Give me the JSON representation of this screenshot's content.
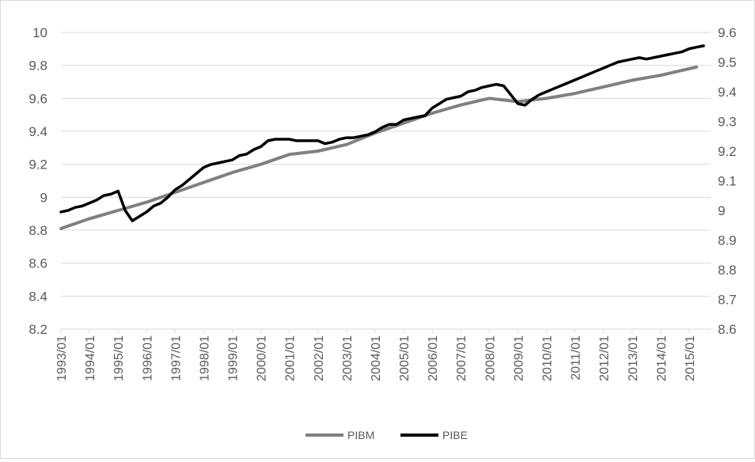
{
  "chart_data": {
    "type": "line",
    "title": "",
    "xlabel": "",
    "ylabel_left": "",
    "ylabel_right": "",
    "grid": true,
    "legend_position": "bottom",
    "x_tick_labels": [
      "1993/01",
      "1994/01",
      "1995/01",
      "1996/01",
      "1997/01",
      "1998/01",
      "1999/01",
      "2000/01",
      "2001/01",
      "2002/01",
      "2003/01",
      "2004/01",
      "2005/01",
      "2006/01",
      "2007/01",
      "2008/01",
      "2009/01",
      "2010/01",
      "2011/01",
      "2012/01",
      "2013/01",
      "2014/01",
      "2015/01"
    ],
    "y_left": {
      "min": 8.2,
      "max": 10,
      "ticks": [
        "8.2",
        "8.4",
        "8.6",
        "8.8",
        "9",
        "9.2",
        "9.4",
        "9.6",
        "9.8",
        "10"
      ]
    },
    "y_right": {
      "min": 8.6,
      "max": 9.6,
      "ticks": [
        "8.6",
        "8.7",
        "8.8",
        "8.9",
        "9",
        "9.1",
        "9.2",
        "9.3",
        "9.4",
        "9.5",
        "9.6"
      ]
    },
    "series": [
      {
        "name": "PIBM",
        "axis": "left",
        "color": "#808080",
        "points": [
          [
            "1993/01",
            8.81
          ],
          [
            "1994/01",
            8.87
          ],
          [
            "1995/01",
            8.92
          ],
          [
            "1996/01",
            8.97
          ],
          [
            "1997/01",
            9.03
          ],
          [
            "1998/01",
            9.09
          ],
          [
            "1999/01",
            9.15
          ],
          [
            "2000/01",
            9.2
          ],
          [
            "2001/01",
            9.26
          ],
          [
            "2002/01",
            9.28
          ],
          [
            "2003/01",
            9.32
          ],
          [
            "2004/01",
            9.39
          ],
          [
            "2005/01",
            9.45
          ],
          [
            "2006/01",
            9.51
          ],
          [
            "2007/01",
            9.56
          ],
          [
            "2008/01",
            9.6
          ],
          [
            "2009/01",
            9.58
          ],
          [
            "2010/01",
            9.6
          ],
          [
            "2011/01",
            9.63
          ],
          [
            "2012/01",
            9.67
          ],
          [
            "2013/01",
            9.71
          ],
          [
            "2014/01",
            9.74
          ],
          [
            "2015/01",
            9.78
          ],
          [
            "2015/04",
            9.79
          ]
        ]
      },
      {
        "name": "PIBE",
        "axis": "right",
        "color": "#000000",
        "points": [
          [
            "1993/01",
            8.995
          ],
          [
            "1993/04",
            9.0
          ],
          [
            "1993/07",
            9.01
          ],
          [
            "1993/10",
            9.015
          ],
          [
            "1994/01",
            9.025
          ],
          [
            "1994/04",
            9.035
          ],
          [
            "1994/07",
            9.05
          ],
          [
            "1994/10",
            9.055
          ],
          [
            "1995/01",
            9.065
          ],
          [
            "1995/04",
            9.0
          ],
          [
            "1995/07",
            8.965
          ],
          [
            "1995/10",
            8.98
          ],
          [
            "1996/01",
            8.995
          ],
          [
            "1996/04",
            9.015
          ],
          [
            "1996/07",
            9.025
          ],
          [
            "1996/10",
            9.045
          ],
          [
            "1997/01",
            9.07
          ],
          [
            "1997/04",
            9.085
          ],
          [
            "1997/07",
            9.105
          ],
          [
            "1997/10",
            9.125
          ],
          [
            "1998/01",
            9.145
          ],
          [
            "1998/04",
            9.155
          ],
          [
            "1998/07",
            9.16
          ],
          [
            "1998/10",
            9.165
          ],
          [
            "1999/01",
            9.17
          ],
          [
            "1999/04",
            9.185
          ],
          [
            "1999/07",
            9.19
          ],
          [
            "1999/10",
            9.205
          ],
          [
            "2000/01",
            9.215
          ],
          [
            "2000/04",
            9.235
          ],
          [
            "2000/07",
            9.24
          ],
          [
            "2000/10",
            9.24
          ],
          [
            "2001/01",
            9.24
          ],
          [
            "2001/04",
            9.235
          ],
          [
            "2001/07",
            9.235
          ],
          [
            "2001/10",
            9.235
          ],
          [
            "2002/01",
            9.235
          ],
          [
            "2002/04",
            9.225
          ],
          [
            "2002/07",
            9.23
          ],
          [
            "2002/10",
            9.24
          ],
          [
            "2003/01",
            9.245
          ],
          [
            "2003/04",
            9.245
          ],
          [
            "2003/07",
            9.25
          ],
          [
            "2003/10",
            9.255
          ],
          [
            "2004/01",
            9.265
          ],
          [
            "2004/04",
            9.28
          ],
          [
            "2004/07",
            9.29
          ],
          [
            "2004/10",
            9.29
          ],
          [
            "2005/01",
            9.305
          ],
          [
            "2005/04",
            9.31
          ],
          [
            "2005/07",
            9.315
          ],
          [
            "2005/10",
            9.32
          ],
          [
            "2006/01",
            9.345
          ],
          [
            "2006/04",
            9.36
          ],
          [
            "2006/07",
            9.375
          ],
          [
            "2006/10",
            9.38
          ],
          [
            "2007/01",
            9.385
          ],
          [
            "2007/04",
            9.4
          ],
          [
            "2007/07",
            9.405
          ],
          [
            "2007/10",
            9.415
          ],
          [
            "2008/01",
            9.42
          ],
          [
            "2008/04",
            9.425
          ],
          [
            "2008/07",
            9.42
          ],
          [
            "2008/10",
            9.39
          ],
          [
            "2009/01",
            9.36
          ],
          [
            "2009/04",
            9.355
          ],
          [
            "2009/07",
            9.375
          ],
          [
            "2009/10",
            9.39
          ],
          [
            "2010/01",
            9.4
          ],
          [
            "2010/04",
            9.41
          ],
          [
            "2010/07",
            9.42
          ],
          [
            "2010/10",
            9.43
          ],
          [
            "2011/01",
            9.44
          ],
          [
            "2011/04",
            9.45
          ],
          [
            "2011/07",
            9.46
          ],
          [
            "2011/10",
            9.47
          ],
          [
            "2012/01",
            9.48
          ],
          [
            "2012/04",
            9.49
          ],
          [
            "2012/07",
            9.5
          ],
          [
            "2012/10",
            9.505
          ],
          [
            "2013/01",
            9.51
          ],
          [
            "2013/04",
            9.515
          ],
          [
            "2013/07",
            9.51
          ],
          [
            "2013/10",
            9.515
          ],
          [
            "2014/01",
            9.52
          ],
          [
            "2014/04",
            9.525
          ],
          [
            "2014/07",
            9.53
          ],
          [
            "2014/10",
            9.535
          ],
          [
            "2015/01",
            9.545
          ],
          [
            "2015/04",
            9.55
          ],
          [
            "2015/07",
            9.555
          ]
        ]
      }
    ]
  }
}
